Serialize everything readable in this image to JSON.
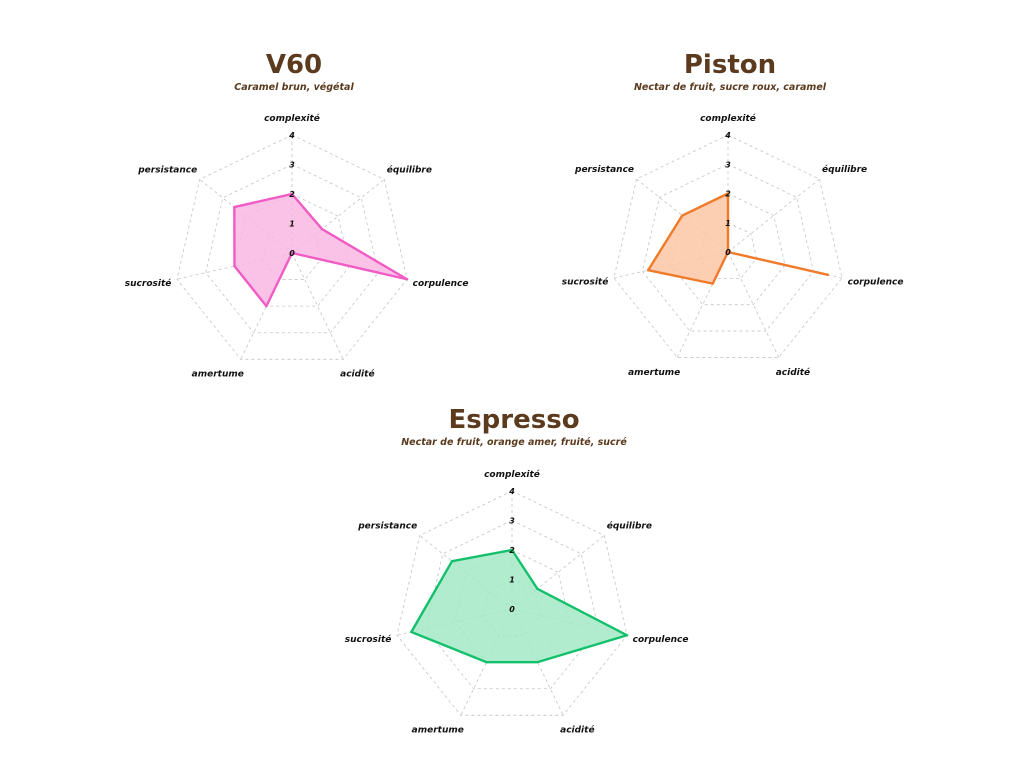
{
  "chart_data": [
    {
      "type": "radar",
      "title": "V60",
      "subtitle": "Caramel brun, végétal",
      "axes": [
        "complexité",
        "équilibre",
        "corpulence",
        "acidité",
        "amertume",
        "sucrosité",
        "persistance"
      ],
      "ticks": [
        "0",
        "1",
        "2",
        "3",
        "4"
      ],
      "rmax": 4,
      "values": [
        2,
        1.3,
        4,
        0,
        2,
        2,
        2.5
      ],
      "color": "#f05cc4",
      "fill": "#f9b7e3",
      "grid": true
    },
    {
      "type": "radar",
      "title": "Piston",
      "subtitle": "Nectar de fruit, sucre roux, caramel",
      "axes": [
        "complexité",
        "équilibre",
        "corpulence",
        "acidité",
        "amertume",
        "sucrosité",
        "persistance"
      ],
      "ticks": [
        "0",
        "1",
        "2",
        "3",
        "4"
      ],
      "rmax": 4,
      "values": [
        2,
        0,
        3.5,
        0,
        1.2,
        2.8,
        2
      ],
      "color": "#f07a2a",
      "fill": "#fbc7a4",
      "grid": true
    },
    {
      "type": "radar",
      "title": "Espresso",
      "subtitle": "Nectar de fruit, orange amer, fruité, sucré",
      "axes": [
        "complexité",
        "équilibre",
        "corpulence",
        "acidité",
        "amertume",
        "sucrosité",
        "persistance"
      ],
      "ticks": [
        "0",
        "1",
        "2",
        "3",
        "4"
      ],
      "rmax": 4,
      "values": [
        2,
        1.1,
        4,
        2,
        2,
        3.5,
        2.6
      ],
      "color": "#13c06b",
      "fill": "#a5e9c6",
      "grid": true
    }
  ]
}
